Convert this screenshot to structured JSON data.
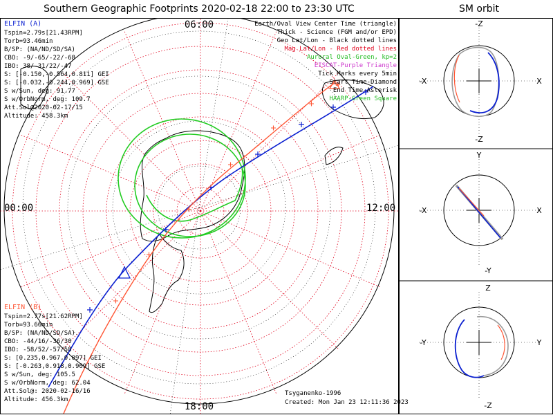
{
  "title": "Southern Geographic Footprints 2020-02-18 22:00 to 23:30 UTC",
  "orbit_title": "SM orbit",
  "map": {
    "hour_labels": {
      "top": "06:00",
      "left": "00:00",
      "right": "12:00",
      "bottom": "18:00"
    }
  },
  "legend": [
    {
      "text": "Earth/Oval View Center Time (triangle)",
      "color": "#000000"
    },
    {
      "text": "Thick - Science (FGM and/or EPD)",
      "color": "#000000"
    },
    {
      "text": "Geo Lat/Lon - Black dotted lines",
      "color": "#000000"
    },
    {
      "text": "Mag Lat/Lon - Red dotted lines",
      "color": "#e0001b"
    },
    {
      "text": "Auroral Oval-Green, kp=2",
      "color": "#22bb22"
    },
    {
      "text": "EISCAT-Purple Triangle",
      "color": "#cc33cc"
    },
    {
      "text": "Tick Marks every 5min",
      "color": "#000000"
    },
    {
      "text": "Start Time-Diamond",
      "color": "#000000"
    },
    {
      "text": "End Time-Asterisk",
      "color": "#000000"
    },
    {
      "text": "HAARP-Green Square",
      "color": "#22bb22"
    }
  ],
  "elfin_a": {
    "name": "ELFIN (A)",
    "color": "#0a1fd0",
    "lines": [
      "Tspin=2.79s[21.43RPM]",
      "Torb=93.46min",
      "B/SP: (NA/ND/SD/SA)",
      "CBO: -9/-65/-22/-68",
      "IBO: 38/-31/22/-47",
      "S: [-0.150,-0.564,0.811] GEI",
      "S: [-0.032,-0.244,0.969] GSE",
      "S w/Sun, deg: 91.77",
      "S w/OrbNorm, deg: 109.7",
      "Att.Sol@2020-02-17/15",
      "Altitude: 458.3km"
    ]
  },
  "elfin_b": {
    "name": "ELFIN (B)",
    "color": "#ff5533",
    "lines": [
      "Tspin=2.77s[21.62RPM]",
      "Torb=93.66min",
      "B/SP: (NA/ND/SD/SA)",
      "CBO: -44/16/-36/30",
      "IBO: -58/52/-57/58",
      "S: [0.235,0.967,0.097] GEI",
      "S: [-0.263,0.918,0.969] GSE",
      "S w/Sun, deg: 105.5",
      "S w/OrbNorm, deg: 62.04",
      "Att.Sol@: 2020-02-16/16",
      "Altitude: 456.3km"
    ]
  },
  "footer": {
    "model": "Tsyganenko-1996",
    "created": "Created: Mon Jan 23 12:11:36 2023"
  },
  "orbit_panels": [
    {
      "top": "-Z",
      "bottom": "-Z",
      "left": "-X",
      "right": "X"
    },
    {
      "top": "Y",
      "bottom": "-Y",
      "left": "-X",
      "right": "X"
    },
    {
      "top": "Z",
      "bottom": "-Z",
      "left": "-Y",
      "right": "Y"
    }
  ],
  "colors": {
    "elfin_a": "#0a1fd0",
    "elfin_b": "#ff5533",
    "oval": "#22cc22",
    "grid_red": "#e0001b"
  },
  "chart_data": {
    "type": "map-footprint",
    "title": "Southern Geographic Footprints 2020-02-18 22:00 to 23:30 UTC",
    "series": [
      {
        "name": "ELFIN (A)",
        "color": "#0a1fd0"
      },
      {
        "name": "ELFIN (B)",
        "color": "#ff5533"
      }
    ],
    "auroral_oval_kp": 2,
    "tick_interval_min": 5
  }
}
